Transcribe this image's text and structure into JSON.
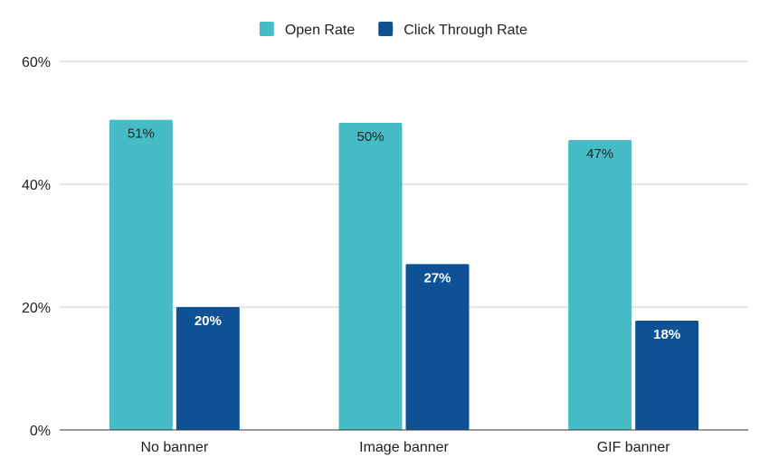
{
  "chart_data": {
    "type": "bar",
    "title": "",
    "xlabel": "",
    "ylabel": "",
    "categories": [
      "No banner",
      "Image banner",
      "GIF banner"
    ],
    "series": [
      {
        "name": "Open Rate",
        "color": "#46bdc6",
        "values": [
          50.5,
          50.0,
          47.2
        ],
        "labels": [
          "51%",
          "50%",
          "47%"
        ],
        "label_color": "#222222"
      },
      {
        "name": "Click Through Rate",
        "color": "#0f5195",
        "values": [
          20.0,
          27.0,
          17.8
        ],
        "labels": [
          "20%",
          "27%",
          "18%"
        ],
        "label_color": "#ffffff"
      }
    ],
    "ylim": [
      0,
      60
    ],
    "yticks": [
      0,
      20,
      40,
      60
    ],
    "ytick_labels": [
      "0%",
      "20%",
      "40%",
      "60%"
    ],
    "grid": true,
    "legend_position": "top-center"
  }
}
